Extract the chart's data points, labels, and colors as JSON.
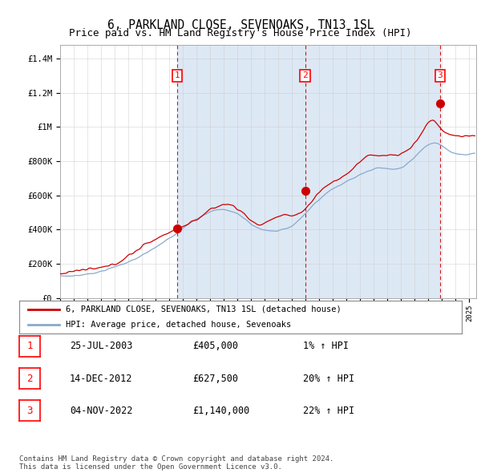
{
  "title": "6, PARKLAND CLOSE, SEVENOAKS, TN13 1SL",
  "subtitle": "Price paid vs. HM Land Registry's House Price Index (HPI)",
  "ylabel_ticks": [
    "£0",
    "£200K",
    "£400K",
    "£600K",
    "£800K",
    "£1M",
    "£1.2M",
    "£1.4M"
  ],
  "ytick_values": [
    0,
    200000,
    400000,
    600000,
    800000,
    1000000,
    1200000,
    1400000
  ],
  "ylim": [
    0,
    1480000
  ],
  "xlim_start": 1995.0,
  "xlim_end": 2025.5,
  "sale_dates": [
    2003.57,
    2012.96,
    2022.84
  ],
  "sale_prices": [
    405000,
    627500,
    1140000
  ],
  "sale_labels": [
    "1",
    "2",
    "3"
  ],
  "red_line_color": "#cc0000",
  "blue_line_color": "#88aacc",
  "dashed_line_color": "#cc0000",
  "background_color": "#dde8f5",
  "plot_bg_color": "#ffffff",
  "grid_color": "#cccccc",
  "shade_color": "#dde8f5",
  "legend_label_red": "6, PARKLAND CLOSE, SEVENOAKS, TN13 1SL (detached house)",
  "legend_label_blue": "HPI: Average price, detached house, Sevenoaks",
  "table_rows": [
    [
      "1",
      "25-JUL-2003",
      "£405,000",
      "1% ↑ HPI"
    ],
    [
      "2",
      "14-DEC-2012",
      "£627,500",
      "20% ↑ HPI"
    ],
    [
      "3",
      "04-NOV-2022",
      "£1,140,000",
      "22% ↑ HPI"
    ]
  ],
  "footer": "Contains HM Land Registry data © Crown copyright and database right 2024.\nThis data is licensed under the Open Government Licence v3.0.",
  "title_fontsize": 10.5,
  "subtitle_fontsize": 9
}
